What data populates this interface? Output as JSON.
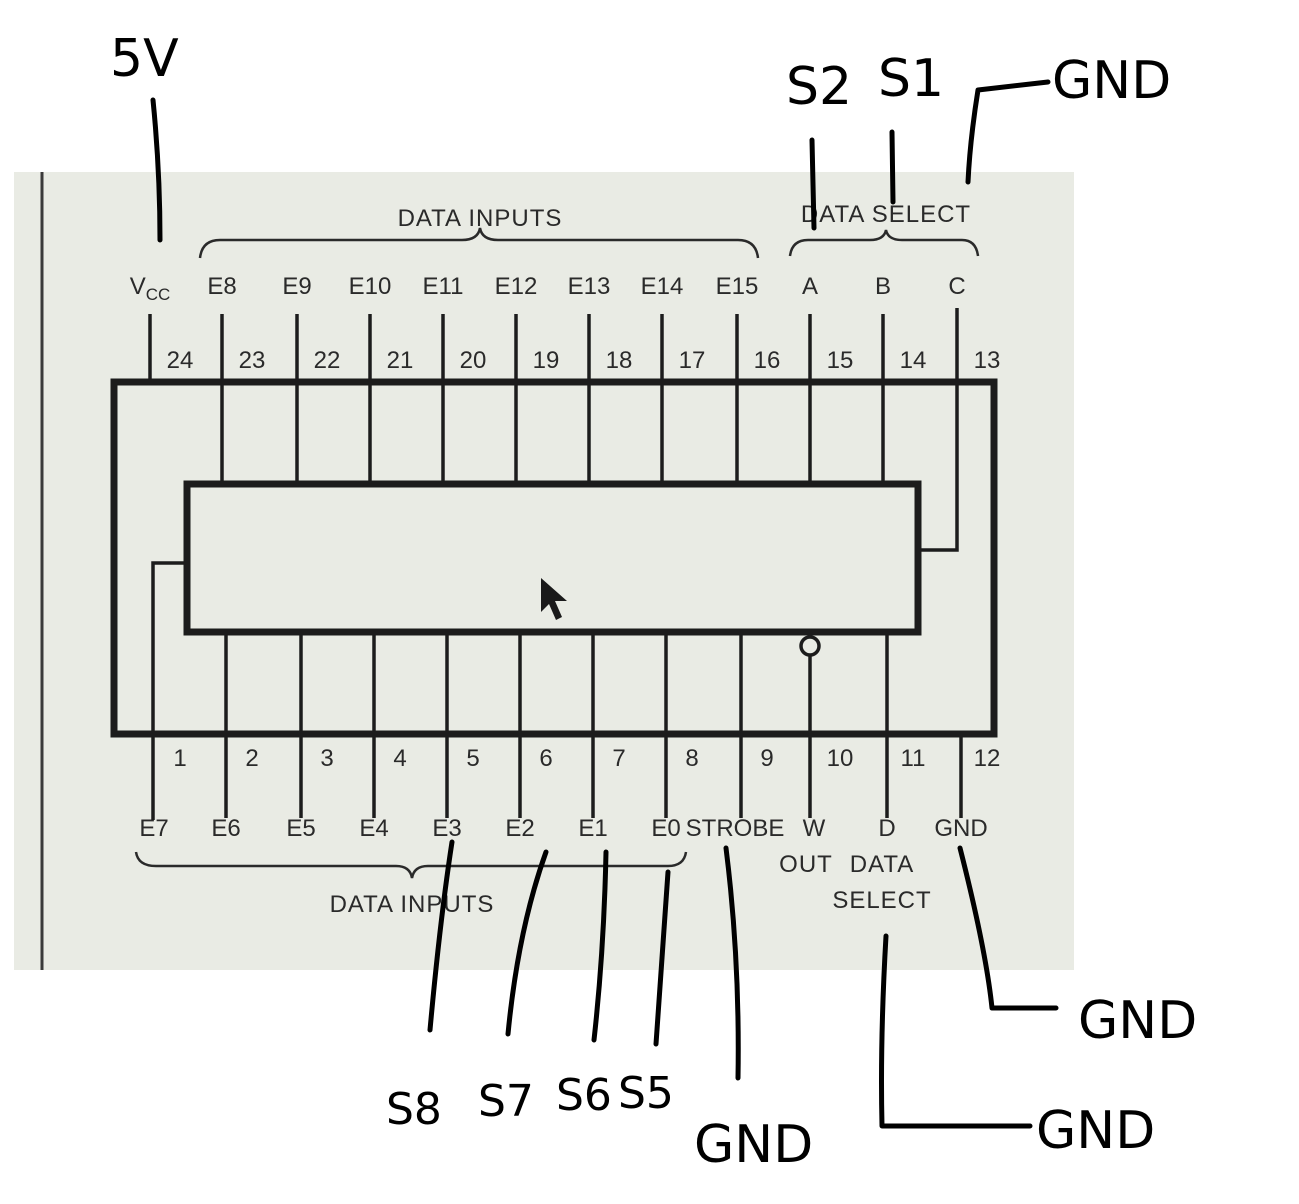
{
  "diagram": {
    "top_group_label": "DATA INPUTS",
    "select_group_label": "DATA SELECT",
    "bottom_group_label": "DATA INPUTS",
    "out_label": "OUT",
    "data_select_bottom_line1": "DATA",
    "data_select_bottom_line2": "SELECT",
    "top_pins": [
      {
        "num": "24",
        "name": "VCC"
      },
      {
        "num": "23",
        "name": "E8"
      },
      {
        "num": "22",
        "name": "E9"
      },
      {
        "num": "21",
        "name": "E10"
      },
      {
        "num": "20",
        "name": "E11"
      },
      {
        "num": "19",
        "name": "E12"
      },
      {
        "num": "18",
        "name": "E13"
      },
      {
        "num": "17",
        "name": "E14"
      },
      {
        "num": "16",
        "name": "E15"
      },
      {
        "num": "15",
        "name": "A"
      },
      {
        "num": "14",
        "name": "B"
      },
      {
        "num": "13",
        "name": "C"
      }
    ],
    "bottom_pins": [
      {
        "num": "1",
        "name": "E7"
      },
      {
        "num": "2",
        "name": "E6"
      },
      {
        "num": "3",
        "name": "E5"
      },
      {
        "num": "4",
        "name": "E4"
      },
      {
        "num": "5",
        "name": "E3"
      },
      {
        "num": "6",
        "name": "E2"
      },
      {
        "num": "7",
        "name": "E1"
      },
      {
        "num": "8",
        "name": "E0"
      },
      {
        "num": "9",
        "name": "STROBE"
      },
      {
        "num": "10",
        "name": "W"
      },
      {
        "num": "11",
        "name": "D"
      },
      {
        "num": "12",
        "name": "GND"
      }
    ]
  },
  "annotations": {
    "vcc_supply": "5V",
    "s2": "S2",
    "s1": "S1",
    "c_gnd": "GND",
    "s8": "S8",
    "s7": "S7",
    "s6": "S6",
    "s5": "S5",
    "strobe_gnd": "GND",
    "d_gnd": "GND",
    "pin12_gnd": "GND"
  }
}
